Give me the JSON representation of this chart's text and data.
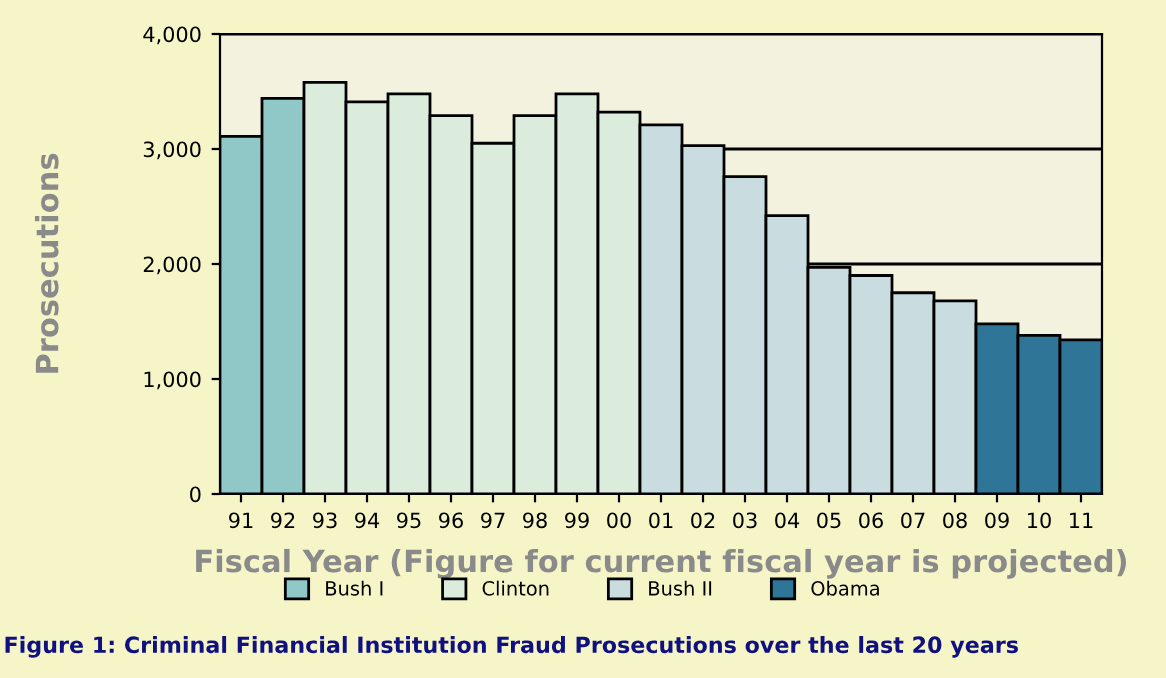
{
  "chart_data": {
    "type": "bar",
    "categories": [
      "91",
      "92",
      "93",
      "94",
      "95",
      "96",
      "97",
      "98",
      "99",
      "00",
      "01",
      "02",
      "03",
      "04",
      "05",
      "06",
      "07",
      "08",
      "09",
      "10",
      "11"
    ],
    "series": [
      {
        "name": "Bush I",
        "color": "#8fc8c6",
        "values": [
          3110,
          3440,
          null,
          null,
          null,
          null,
          null,
          null,
          null,
          null,
          null,
          null,
          null,
          null,
          null,
          null,
          null,
          null,
          null,
          null,
          null
        ]
      },
      {
        "name": "Clinton",
        "color": "#dcecdc",
        "values": [
          null,
          null,
          3580,
          3410,
          3480,
          3290,
          3050,
          3290,
          3480,
          3320,
          null,
          null,
          null,
          null,
          null,
          null,
          null,
          null,
          null,
          null,
          null
        ]
      },
      {
        "name": "Bush II",
        "color": "#c9dde0",
        "values": [
          null,
          null,
          null,
          null,
          null,
          null,
          null,
          null,
          null,
          null,
          3210,
          3030,
          2760,
          2420,
          1970,
          1900,
          1750,
          1680,
          null,
          null,
          null
        ]
      },
      {
        "name": "Obama",
        "color": "#2e7597",
        "values": [
          null,
          null,
          null,
          null,
          null,
          null,
          null,
          null,
          null,
          null,
          null,
          null,
          null,
          null,
          null,
          null,
          null,
          null,
          1480,
          1380,
          1340
        ]
      }
    ],
    "ylabel": "Prosecutions",
    "xlabel": "Fiscal Year (Figure for current fiscal year is projected)",
    "ylim": [
      0,
      4000
    ],
    "yticks": [
      {
        "value": 0,
        "label": "0"
      },
      {
        "value": 1000,
        "label": "1,000"
      },
      {
        "value": 2000,
        "label": "2,000"
      },
      {
        "value": 3000,
        "label": "3,000"
      },
      {
        "value": 4000,
        "label": "4,000"
      }
    ],
    "grid": "y",
    "legend": "bottom",
    "annotations": [
      "Figure 1: Criminal Financial Institution Fraud Prosecutions over the last 20 years"
    ]
  }
}
